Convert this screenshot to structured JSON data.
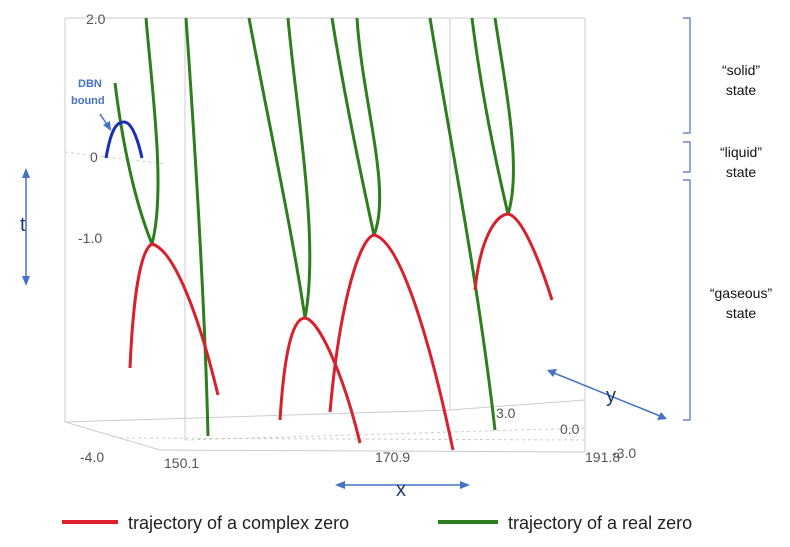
{
  "axes": {
    "t_ticks": [
      "2.0",
      "0",
      "-1.0",
      "-4.0"
    ],
    "x_ticks": [
      "150.1",
      "170.9",
      "191.8"
    ],
    "y_ticks": [
      "3.0",
      "0.0",
      "-3.0"
    ],
    "t_label": "t",
    "x_label": "x",
    "y_label": "y"
  },
  "annotations": {
    "dbn_line1": "DBN",
    "dbn_line2": "bound"
  },
  "states": {
    "solid_quote": "“solid”",
    "liquid_quote": "“liquid”",
    "gaseous_quote": "“gaseous”",
    "word": "state"
  },
  "legend": {
    "complex_label": "trajectory of a complex zero",
    "real_label": "trajectory of a real zero",
    "complex_color": "#d9202c",
    "real_color": "#2e7d1e"
  },
  "colors": {
    "dbn_color": "#1a2fb8",
    "annotation_color": "#4472c4",
    "box_color": "#c8c8c8"
  }
}
